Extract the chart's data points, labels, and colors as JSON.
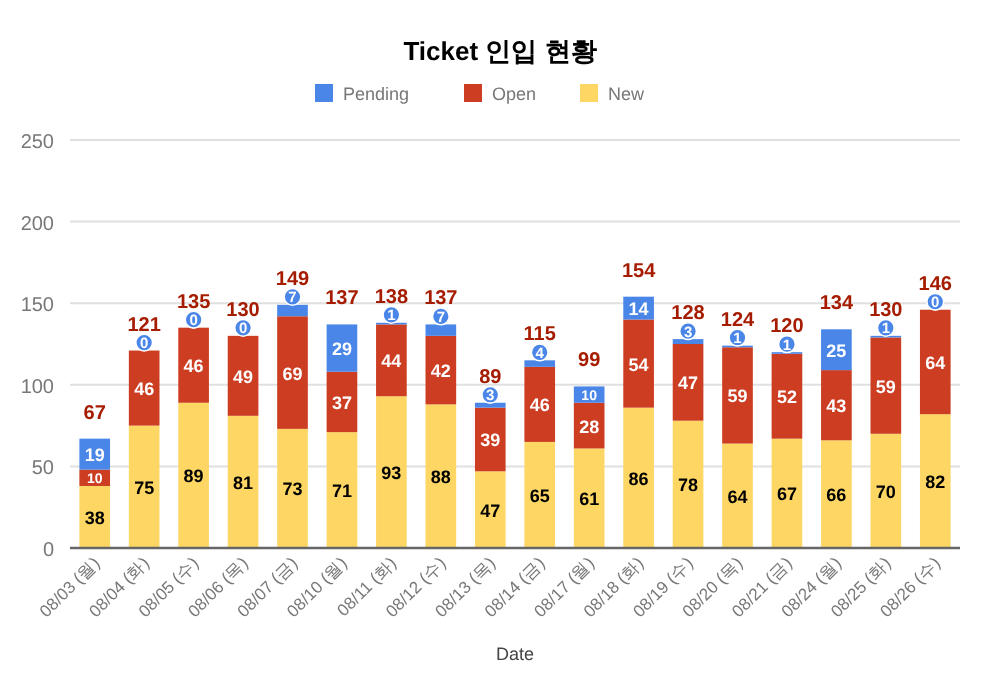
{
  "chart_data": {
    "type": "bar",
    "title": "Ticket 인입 현황",
    "xlabel": "Date",
    "categories": [
      "08/03 (월)",
      "08/04 (화)",
      "08/05 (수)",
      "08/06 (목)",
      "08/07 (금)",
      "08/10 (월)",
      "08/11 (화)",
      "08/12 (수)",
      "08/13 (목)",
      "08/14 (금)",
      "08/17 (월)",
      "08/18 (화)",
      "08/19 (수)",
      "08/20 (목)",
      "08/21 (금)",
      "08/24 (월)",
      "08/25 (화)",
      "08/26 (수)"
    ],
    "stacked": true,
    "series": [
      {
        "name": "New",
        "color": "#fdd663",
        "values": [
          38,
          75,
          89,
          81,
          73,
          71,
          93,
          88,
          47,
          65,
          61,
          86,
          78,
          64,
          67,
          66,
          70,
          82
        ]
      },
      {
        "name": "Open",
        "color": "#cc3d22",
        "values": [
          10,
          46,
          46,
          49,
          69,
          37,
          44,
          42,
          39,
          46,
          28,
          54,
          47,
          59,
          52,
          43,
          59,
          64
        ]
      },
      {
        "name": "Pending",
        "color": "#4a86e8",
        "values": [
          19,
          0,
          0,
          0,
          7,
          29,
          1,
          7,
          3,
          4,
          10,
          14,
          3,
          1,
          1,
          25,
          1,
          0
        ]
      }
    ],
    "totals": [
      "67",
      "121",
      "135",
      "130",
      "149",
      "137",
      "138",
      "137",
      "89",
      "115",
      "99",
      "154",
      "128",
      "124",
      "120",
      "134",
      "130",
      "146"
    ],
    "data_labels": true,
    "ylim": [
      0,
      250
    ],
    "yticks": [
      0,
      50,
      100,
      150,
      200,
      250
    ],
    "grid": "y",
    "legend": "top"
  }
}
